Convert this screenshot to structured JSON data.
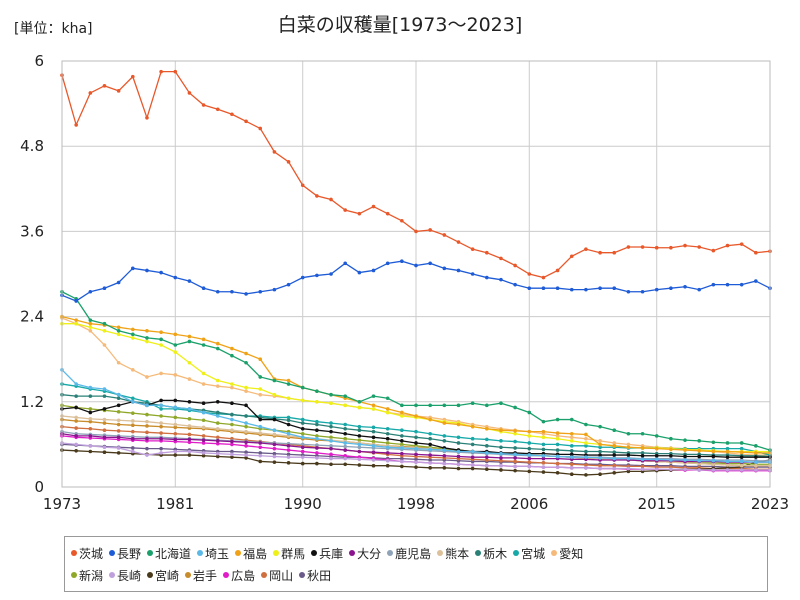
{
  "unit_label": "[単位：kha]",
  "chart_data": {
    "type": "line",
    "title": "白菜の収穫量[1973～2023]",
    "xlabel": "",
    "ylabel": "",
    "xlim": [
      1973,
      2023
    ],
    "ylim": [
      0,
      6
    ],
    "x_ticks": [
      "1973",
      "1981",
      "1990",
      "1998",
      "2006",
      "2015",
      "2023"
    ],
    "y_ticks": [
      "0",
      "1.2",
      "2.4",
      "3.6",
      "4.8",
      "6"
    ],
    "grid": true,
    "legend_position": "bottom",
    "series": [
      {
        "name": "茨城",
        "color": "#e8582a",
        "values": [
          5.8,
          5.1,
          5.55,
          5.65,
          5.58,
          5.78,
          5.2,
          5.85,
          5.85,
          5.55,
          5.38,
          5.32,
          5.25,
          5.15,
          5.05,
          4.72,
          4.58,
          4.25,
          4.1,
          4.05,
          3.9,
          3.85,
          3.95,
          3.85,
          3.75,
          3.6,
          3.62,
          3.55,
          3.45,
          3.35,
          3.3,
          3.22,
          3.12,
          3.0,
          2.95,
          3.05,
          3.25,
          3.35,
          3.3,
          3.3,
          3.38,
          3.38,
          3.37,
          3.37,
          3.4,
          3.38,
          3.33,
          3.4,
          3.42,
          3.3,
          3.32
        ]
      },
      {
        "name": "長野",
        "color": "#1e5bd6",
        "values": [
          2.7,
          2.62,
          2.75,
          2.8,
          2.88,
          3.08,
          3.05,
          3.02,
          2.95,
          2.9,
          2.8,
          2.75,
          2.75,
          2.72,
          2.75,
          2.78,
          2.85,
          2.95,
          2.98,
          3.0,
          3.15,
          3.02,
          3.05,
          3.15,
          3.18,
          3.12,
          3.15,
          3.08,
          3.05,
          3.0,
          2.95,
          2.92,
          2.85,
          2.8,
          2.8,
          2.8,
          2.78,
          2.78,
          2.8,
          2.8,
          2.75,
          2.75,
          2.78,
          2.8,
          2.82,
          2.78,
          2.85,
          2.85,
          2.85,
          2.9,
          2.8
        ]
      },
      {
        "name": "北海道",
        "color": "#1aa06a",
        "values": [
          2.75,
          2.65,
          2.35,
          2.3,
          2.2,
          2.15,
          2.1,
          2.08,
          2.0,
          2.05,
          2.0,
          1.95,
          1.85,
          1.75,
          1.55,
          1.5,
          1.45,
          1.4,
          1.35,
          1.3,
          1.28,
          1.2,
          1.28,
          1.25,
          1.15,
          1.15,
          1.15,
          1.15,
          1.15,
          1.18,
          1.15,
          1.18,
          1.12,
          1.05,
          0.92,
          0.95,
          0.95,
          0.88,
          0.85,
          0.8,
          0.75,
          0.75,
          0.72,
          0.68,
          0.66,
          0.65,
          0.63,
          0.62,
          0.62,
          0.58,
          0.52
        ]
      },
      {
        "name": "埼玉",
        "color": "#5bb9e8",
        "values": [
          1.65,
          1.45,
          1.4,
          1.38,
          1.3,
          1.2,
          1.15,
          1.15,
          1.12,
          1.1,
          1.05,
          1.0,
          0.95,
          0.9,
          0.85,
          0.8,
          0.75,
          0.7,
          0.68,
          0.65,
          0.62,
          0.6,
          0.58,
          0.56,
          0.55,
          0.54,
          0.53,
          0.52,
          0.5,
          0.5,
          0.48,
          0.47,
          0.46,
          0.45,
          0.44,
          0.43,
          0.42,
          0.42,
          0.41,
          0.4,
          0.4,
          0.39,
          0.39,
          0.38,
          0.38,
          0.37,
          0.37,
          0.36,
          0.36,
          0.35,
          0.35
        ]
      },
      {
        "name": "福島",
        "color": "#f0a216",
        "values": [
          2.4,
          2.35,
          2.3,
          2.28,
          2.25,
          2.22,
          2.2,
          2.18,
          2.15,
          2.12,
          2.08,
          2.02,
          1.95,
          1.88,
          1.8,
          1.52,
          1.5,
          1.4,
          1.35,
          1.3,
          1.25,
          1.2,
          1.15,
          1.1,
          1.05,
          1.0,
          0.95,
          0.9,
          0.88,
          0.85,
          0.82,
          0.8,
          0.79,
          0.78,
          0.78,
          0.76,
          0.75,
          0.74,
          0.6,
          0.58,
          0.56,
          0.55,
          0.54,
          0.53,
          0.52,
          0.51,
          0.5,
          0.5,
          0.49,
          0.48,
          0.48
        ]
      },
      {
        "name": "群馬",
        "color": "#eef018",
        "values": [
          2.3,
          2.3,
          2.25,
          2.2,
          2.15,
          2.1,
          2.05,
          2.0,
          1.9,
          1.75,
          1.6,
          1.5,
          1.45,
          1.4,
          1.38,
          1.3,
          1.25,
          1.22,
          1.2,
          1.18,
          1.15,
          1.12,
          1.1,
          1.05,
          1.0,
          0.98,
          0.95,
          0.92,
          0.9,
          0.85,
          0.82,
          0.78,
          0.75,
          0.72,
          0.7,
          0.68,
          0.65,
          0.62,
          0.6,
          0.58,
          0.56,
          0.55,
          0.55,
          0.54,
          0.53,
          0.52,
          0.51,
          0.5,
          0.5,
          0.5,
          0.5
        ]
      },
      {
        "name": "兵庫",
        "color": "#111111",
        "values": [
          1.1,
          1.12,
          1.05,
          1.1,
          1.15,
          1.2,
          1.15,
          1.22,
          1.22,
          1.2,
          1.18,
          1.2,
          1.18,
          1.15,
          0.95,
          0.95,
          0.88,
          0.82,
          0.8,
          0.78,
          0.75,
          0.72,
          0.7,
          0.68,
          0.65,
          0.62,
          0.6,
          0.55,
          0.52,
          0.5,
          0.5,
          0.48,
          0.48,
          0.47,
          0.47,
          0.46,
          0.46,
          0.45,
          0.45,
          0.45,
          0.45,
          0.44,
          0.44,
          0.44,
          0.43,
          0.43,
          0.43,
          0.42,
          0.42,
          0.42,
          0.42
        ]
      },
      {
        "name": "大分",
        "color": "#8a158f",
        "values": [
          0.75,
          0.72,
          0.72,
          0.7,
          0.7,
          0.68,
          0.68,
          0.68,
          0.67,
          0.67,
          0.66,
          0.65,
          0.64,
          0.63,
          0.62,
          0.6,
          0.58,
          0.56,
          0.55,
          0.54,
          0.52,
          0.5,
          0.49,
          0.48,
          0.47,
          0.46,
          0.45,
          0.44,
          0.43,
          0.42,
          0.42,
          0.41,
          0.41,
          0.4,
          0.4,
          0.4,
          0.39,
          0.39,
          0.38,
          0.38,
          0.38,
          0.37,
          0.37,
          0.37,
          0.36,
          0.36,
          0.36,
          0.35,
          0.35,
          0.35,
          0.35
        ]
      },
      {
        "name": "鹿児島",
        "color": "#8ea2b8",
        "values": [
          0.78,
          0.75,
          0.74,
          0.73,
          0.72,
          0.71,
          0.7,
          0.7,
          0.69,
          0.68,
          0.67,
          0.66,
          0.65,
          0.64,
          0.63,
          0.62,
          0.61,
          0.6,
          0.59,
          0.58,
          0.57,
          0.56,
          0.55,
          0.54,
          0.53,
          0.52,
          0.51,
          0.5,
          0.49,
          0.48,
          0.47,
          0.46,
          0.45,
          0.44,
          0.44,
          0.43,
          0.43,
          0.42,
          0.42,
          0.41,
          0.41,
          0.4,
          0.4,
          0.4,
          0.39,
          0.39,
          0.38,
          0.38,
          0.38,
          0.37,
          0.37
        ]
      },
      {
        "name": "熊本",
        "color": "#dcc09a",
        "values": [
          1.0,
          0.98,
          0.96,
          0.95,
          0.94,
          0.93,
          0.92,
          0.9,
          0.88,
          0.86,
          0.84,
          0.82,
          0.8,
          0.78,
          0.76,
          0.74,
          0.72,
          0.7,
          0.68,
          0.66,
          0.64,
          0.62,
          0.6,
          0.58,
          0.56,
          0.55,
          0.54,
          0.52,
          0.5,
          0.49,
          0.48,
          0.47,
          0.46,
          0.45,
          0.44,
          0.43,
          0.42,
          0.41,
          0.4,
          0.39,
          0.38,
          0.37,
          0.36,
          0.35,
          0.34,
          0.33,
          0.32,
          0.31,
          0.3,
          0.3,
          0.3
        ]
      },
      {
        "name": "栃木",
        "color": "#2a8077",
        "values": [
          1.3,
          1.28,
          1.28,
          1.28,
          1.25,
          1.2,
          1.18,
          1.15,
          1.12,
          1.1,
          1.08,
          1.05,
          1.02,
          1.0,
          0.98,
          0.96,
          0.94,
          0.9,
          0.88,
          0.85,
          0.82,
          0.8,
          0.78,
          0.75,
          0.72,
          0.7,
          0.68,
          0.65,
          0.62,
          0.6,
          0.58,
          0.56,
          0.55,
          0.54,
          0.53,
          0.52,
          0.51,
          0.5,
          0.5,
          0.49,
          0.48,
          0.48,
          0.47,
          0.47,
          0.46,
          0.46,
          0.45,
          0.45,
          0.44,
          0.44,
          0.43
        ]
      },
      {
        "name": "宮城",
        "color": "#17a8a8",
        "values": [
          1.45,
          1.42,
          1.38,
          1.35,
          1.3,
          1.25,
          1.2,
          1.1,
          1.1,
          1.08,
          1.05,
          1.03,
          1.02,
          1.0,
          1.0,
          0.98,
          0.98,
          0.95,
          0.92,
          0.9,
          0.88,
          0.85,
          0.84,
          0.82,
          0.8,
          0.78,
          0.75,
          0.72,
          0.7,
          0.68,
          0.67,
          0.65,
          0.64,
          0.62,
          0.6,
          0.6,
          0.58,
          0.58,
          0.56,
          0.56,
          0.55,
          0.55,
          0.55,
          0.54,
          0.54,
          0.54,
          0.54,
          0.54,
          0.54,
          0.5,
          0.45
        ]
      },
      {
        "name": "愛知",
        "color": "#f5ba7a",
        "values": [
          2.38,
          2.3,
          2.2,
          2.0,
          1.75,
          1.65,
          1.55,
          1.6,
          1.58,
          1.52,
          1.45,
          1.42,
          1.4,
          1.35,
          1.3,
          1.28,
          1.25,
          1.22,
          1.2,
          1.18,
          1.15,
          1.12,
          1.1,
          1.05,
          1.02,
          1.0,
          0.98,
          0.95,
          0.92,
          0.88,
          0.85,
          0.82,
          0.8,
          0.78,
          0.75,
          0.72,
          0.7,
          0.68,
          0.65,
          0.62,
          0.6,
          0.58,
          0.56,
          0.55,
          0.54,
          0.52,
          0.5,
          0.48,
          0.46,
          0.45,
          0.45
        ]
      },
      {
        "name": "新潟",
        "color": "#8fa82a",
        "values": [
          1.15,
          1.12,
          1.1,
          1.08,
          1.06,
          1.04,
          1.02,
          1.0,
          0.98,
          0.96,
          0.94,
          0.9,
          0.88,
          0.85,
          0.82,
          0.8,
          0.78,
          0.75,
          0.72,
          0.7,
          0.68,
          0.66,
          0.64,
          0.62,
          0.6,
          0.58,
          0.56,
          0.54,
          0.52,
          0.5,
          0.48,
          0.47,
          0.46,
          0.45,
          0.44,
          0.43,
          0.42,
          0.41,
          0.4,
          0.39,
          0.38,
          0.37,
          0.36,
          0.35,
          0.35,
          0.34,
          0.34,
          0.33,
          0.33,
          0.32,
          0.32
        ]
      },
      {
        "name": "長崎",
        "color": "#c0a0dc",
        "values": [
          0.62,
          0.6,
          0.58,
          0.56,
          0.55,
          0.5,
          0.45,
          0.48,
          0.5,
          0.5,
          0.48,
          0.47,
          0.46,
          0.45,
          0.44,
          0.43,
          0.42,
          0.42,
          0.41,
          0.4,
          0.4,
          0.39,
          0.38,
          0.37,
          0.36,
          0.35,
          0.34,
          0.33,
          0.32,
          0.31,
          0.3,
          0.3,
          0.29,
          0.29,
          0.28,
          0.28,
          0.27,
          0.27,
          0.26,
          0.26,
          0.26,
          0.25,
          0.25,
          0.25,
          0.25,
          0.24,
          0.24,
          0.24,
          0.24,
          0.24,
          0.24
        ]
      },
      {
        "name": "宮崎",
        "color": "#4a3a1c",
        "values": [
          0.52,
          0.51,
          0.5,
          0.49,
          0.48,
          0.47,
          0.46,
          0.45,
          0.45,
          0.45,
          0.44,
          0.43,
          0.42,
          0.41,
          0.36,
          0.35,
          0.34,
          0.33,
          0.33,
          0.32,
          0.32,
          0.31,
          0.3,
          0.3,
          0.29,
          0.28,
          0.27,
          0.27,
          0.26,
          0.26,
          0.25,
          0.24,
          0.23,
          0.22,
          0.21,
          0.2,
          0.18,
          0.17,
          0.18,
          0.2,
          0.22,
          0.22,
          0.23,
          0.24,
          0.25,
          0.25,
          0.26,
          0.27,
          0.28,
          0.35,
          0.38
        ]
      },
      {
        "name": "岩手",
        "color": "#c98c2a",
        "values": [
          0.95,
          0.93,
          0.92,
          0.9,
          0.88,
          0.87,
          0.86,
          0.85,
          0.84,
          0.83,
          0.82,
          0.8,
          0.78,
          0.76,
          0.74,
          0.72,
          0.7,
          0.68,
          0.66,
          0.65,
          0.64,
          0.62,
          0.6,
          0.58,
          0.57,
          0.56,
          0.55,
          0.54,
          0.52,
          0.5,
          0.48,
          0.47,
          0.46,
          0.45,
          0.44,
          0.43,
          0.42,
          0.41,
          0.4,
          0.39,
          0.38,
          0.37,
          0.36,
          0.35,
          0.34,
          0.33,
          0.32,
          0.31,
          0.3,
          0.3,
          0.3
        ]
      },
      {
        "name": "広島",
        "color": "#e01cc8",
        "values": [
          0.72,
          0.7,
          0.69,
          0.68,
          0.67,
          0.66,
          0.65,
          0.65,
          0.64,
          0.63,
          0.62,
          0.61,
          0.6,
          0.58,
          0.56,
          0.54,
          0.52,
          0.5,
          0.48,
          0.46,
          0.44,
          0.42,
          0.4,
          0.38,
          0.36,
          0.35,
          0.34,
          0.33,
          0.32,
          0.31,
          0.3,
          0.3,
          0.29,
          0.29,
          0.28,
          0.28,
          0.27,
          0.27,
          0.26,
          0.26,
          0.25,
          0.25,
          0.25,
          0.24,
          0.24,
          0.24,
          0.23,
          0.23,
          0.23,
          0.23,
          0.23
        ]
      },
      {
        "name": "岡山",
        "color": "#d07040",
        "values": [
          0.85,
          0.83,
          0.82,
          0.8,
          0.79,
          0.78,
          0.77,
          0.76,
          0.75,
          0.74,
          0.72,
          0.7,
          0.68,
          0.66,
          0.64,
          0.62,
          0.6,
          0.58,
          0.56,
          0.54,
          0.52,
          0.5,
          0.48,
          0.46,
          0.44,
          0.43,
          0.42,
          0.41,
          0.4,
          0.39,
          0.38,
          0.37,
          0.36,
          0.35,
          0.34,
          0.33,
          0.32,
          0.31,
          0.3,
          0.3,
          0.29,
          0.29,
          0.28,
          0.28,
          0.27,
          0.27,
          0.26,
          0.26,
          0.26,
          0.25,
          0.25
        ]
      },
      {
        "name": "秋田",
        "color": "#6a5a8a",
        "values": [
          0.6,
          0.59,
          0.58,
          0.57,
          0.56,
          0.55,
          0.54,
          0.54,
          0.53,
          0.52,
          0.51,
          0.5,
          0.5,
          0.49,
          0.48,
          0.47,
          0.46,
          0.45,
          0.44,
          0.43,
          0.42,
          0.42,
          0.41,
          0.4,
          0.4,
          0.39,
          0.38,
          0.38,
          0.37,
          0.36,
          0.36,
          0.35,
          0.35,
          0.34,
          0.34,
          0.33,
          0.33,
          0.32,
          0.32,
          0.31,
          0.31,
          0.3,
          0.3,
          0.3,
          0.29,
          0.29,
          0.29,
          0.28,
          0.28,
          0.28,
          0.28
        ]
      }
    ]
  }
}
